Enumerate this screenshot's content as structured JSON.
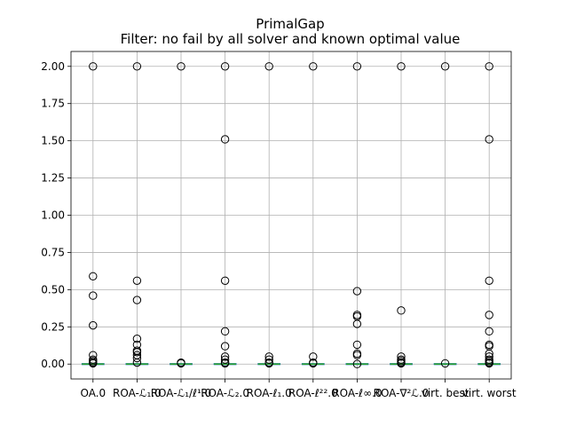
{
  "chart_data": {
    "type": "box",
    "title": "PrimalGap",
    "subtitle": "Filter: no fail by all solver and known optimal value",
    "xlabel": "",
    "ylabel": "",
    "ylim": [
      -0.1,
      2.1
    ],
    "yticks": [
      "0.00",
      "0.25",
      "0.50",
      "0.75",
      "1.00",
      "1.25",
      "1.50",
      "1.75",
      "2.00"
    ],
    "grid": true,
    "categories": [
      "OA.0",
      "ROA-ℒ₁.0",
      "ROA-ℒ₁/ℓ¹.0",
      "ROA-ℒ₂.0",
      "ROA-ℓ₁.0",
      "ROA-ℓ²².0",
      "ROA-ℓ∞.0",
      "ROA-∇²ℒ.0",
      "virt. best",
      "virt. worst"
    ],
    "series": [
      {
        "category": "OA.0",
        "median": 0.0,
        "outliers": [
          2.0,
          0.59,
          0.46,
          0.26,
          0.06,
          0.03,
          0.02,
          0.01,
          0.005
        ]
      },
      {
        "category": "ROA-ℒ₁.0",
        "median": 0.0,
        "outliers": [
          2.0,
          0.56,
          0.43,
          0.17,
          0.13,
          0.09,
          0.08,
          0.06,
          0.04,
          0.01
        ]
      },
      {
        "category": "ROA-ℒ₁/ℓ¹.0",
        "median": 0.0,
        "outliers": [
          2.0,
          0.01,
          0.005
        ]
      },
      {
        "category": "ROA-ℒ₂.0",
        "median": 0.0,
        "outliers": [
          2.0,
          1.51,
          0.56,
          0.22,
          0.12,
          0.05,
          0.03,
          0.01,
          0.005
        ]
      },
      {
        "category": "ROA-ℓ₁.0",
        "median": 0.0,
        "outliers": [
          2.0,
          0.05,
          0.03,
          0.01,
          0.005
        ]
      },
      {
        "category": "ROA-ℓ²².0",
        "median": 0.0,
        "outliers": [
          2.0,
          0.05,
          0.01,
          0.005
        ]
      },
      {
        "category": "ROA-ℓ∞.0",
        "median": 0.0,
        "outliers": [
          2.0,
          0.49,
          0.33,
          0.32,
          0.27,
          0.13,
          0.07,
          0.06,
          0.0
        ]
      },
      {
        "category": "ROA-∇²ℒ.0",
        "median": 0.0,
        "outliers": [
          2.0,
          0.36,
          0.05,
          0.03,
          0.02,
          0.01,
          0.005
        ]
      },
      {
        "category": "virt. best",
        "median": 0.0,
        "outliers": [
          2.0,
          0.005
        ]
      },
      {
        "category": "virt. worst",
        "median": 0.0,
        "outliers": [
          2.0,
          1.51,
          0.56,
          0.33,
          0.22,
          0.13,
          0.12,
          0.07,
          0.05,
          0.03,
          0.02,
          0.01,
          0.005
        ]
      }
    ],
    "colors": {
      "median": "#2ca02c",
      "box": "#1f77b4",
      "outlier": "#000000",
      "grid": "#b0b0b0"
    }
  }
}
